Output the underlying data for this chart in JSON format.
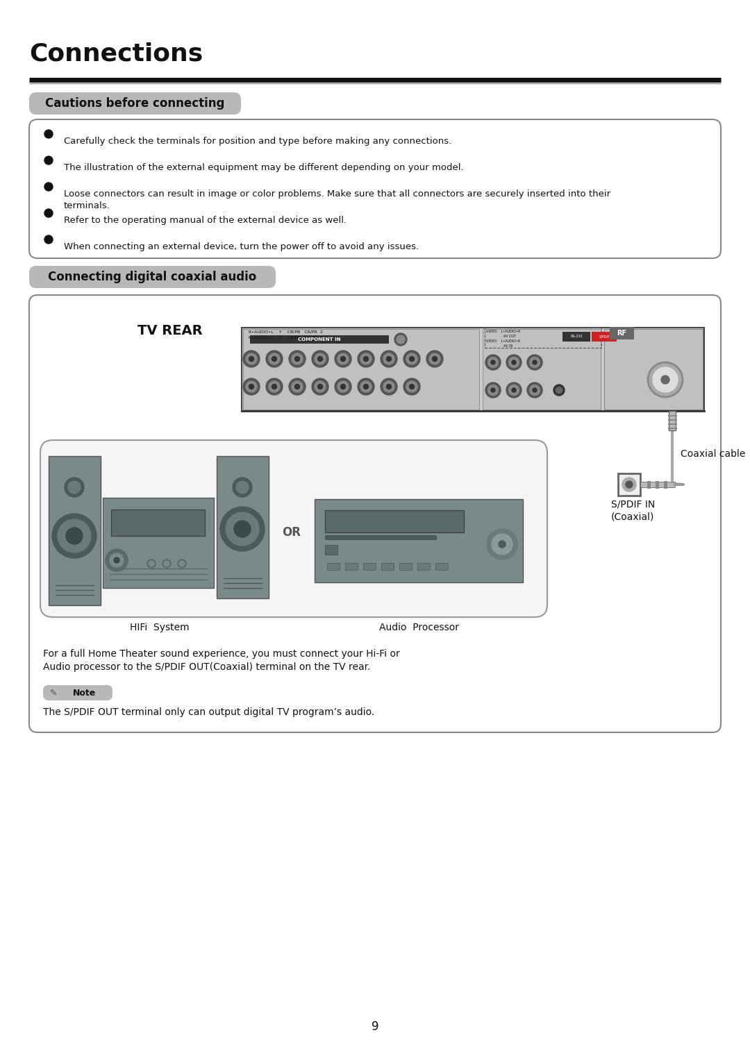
{
  "page_bg": "#ffffff",
  "title": "Connections",
  "title_fontsize": 26,
  "section1_label": "Cautions before connecting",
  "section2_label": "Connecting digital coaxial audio",
  "bullet_items": [
    "Carefully check the terminals for position and type before making any connections.",
    "The illustration of the external equipment may be different depending on your model.",
    "Loose connectors can result in image or color problems. Make sure that all connectors are securely inserted into their\nterminals.",
    "Refer to the operating manual of the external device as well.",
    "When connecting an external device, turn the power off to avoid any issues."
  ],
  "tv_rear_label": "TV REAR",
  "coaxial_cable_label": "Coaxial cable",
  "spdif_label": "S/PDIF IN\n(Coaxial)",
  "or_label": "OR",
  "hifi_label": "HIFi  System",
  "audio_label": "Audio  Processor",
  "note_text": "The S/PDIF OUT terminal only can output digital TV program’s audio.",
  "body_text": "For a full Home Theater sound experience, you must connect your Hi-Fi or\nAudio processor to the S/PDIF OUT(Coaxial) terminal on the TV rear.",
  "page_number": "9"
}
